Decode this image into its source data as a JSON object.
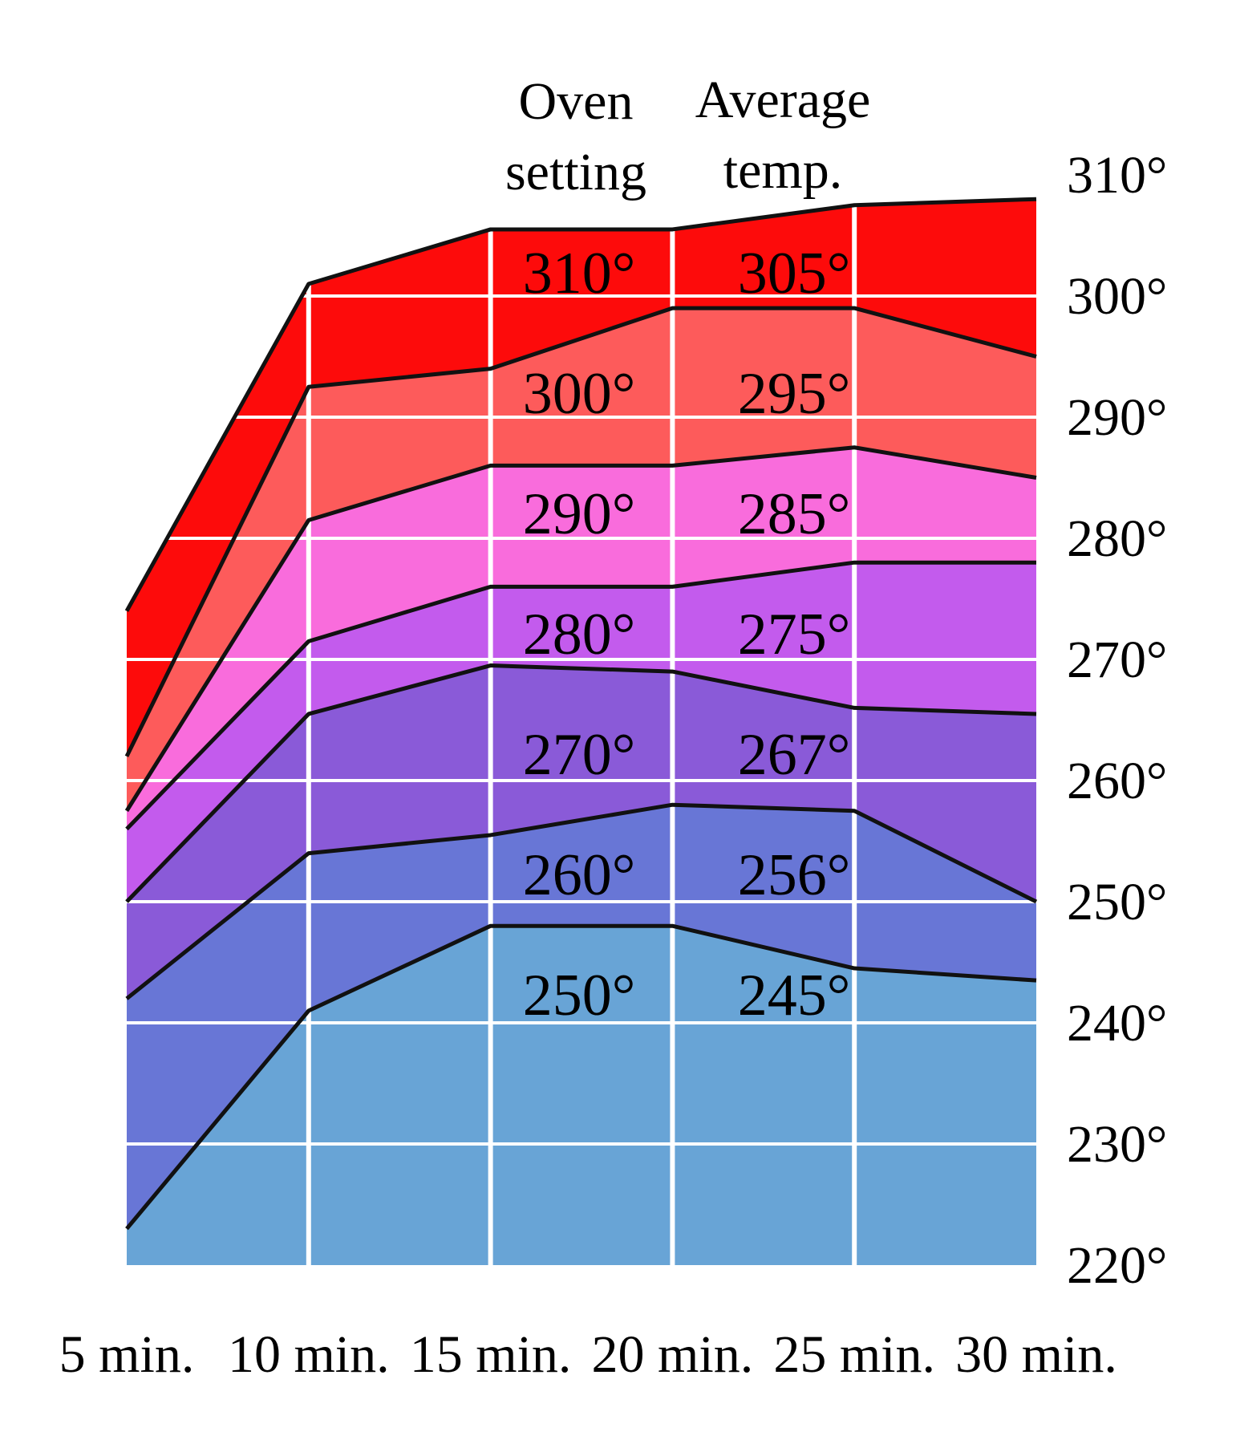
{
  "chart_data": {
    "type": "area",
    "x": [
      "5 min.",
      "10 min.",
      "15 min.",
      "20 min.",
      "25 min.",
      "30 min."
    ],
    "y_ticks": [
      "220°",
      "230°",
      "240°",
      "250°",
      "260°",
      "270°",
      "280°",
      "290°",
      "300°",
      "310°"
    ],
    "ylim": [
      220,
      310
    ],
    "grid": true,
    "column_headers": {
      "oven_setting": [
        "Oven",
        "setting"
      ],
      "average_temp": [
        "Average",
        "temp."
      ]
    },
    "series": [
      {
        "oven_setting": "250°",
        "average_temp": "245°",
        "color": "#68a4d6",
        "values": [
          223,
          241,
          248,
          248,
          244.5,
          243.5
        ]
      },
      {
        "oven_setting": "260°",
        "average_temp": "256°",
        "color": "#6876d6",
        "values": [
          242,
          254,
          255.5,
          258,
          257.5,
          250
        ]
      },
      {
        "oven_setting": "270°",
        "average_temp": "267°",
        "color": "#8a5ad8",
        "values": [
          250,
          265.5,
          269.5,
          269,
          266,
          265.5
        ]
      },
      {
        "oven_setting": "280°",
        "average_temp": "275°",
        "color": "#c35bed",
        "values": [
          256,
          271.5,
          276,
          276,
          278,
          278
        ]
      },
      {
        "oven_setting": "290°",
        "average_temp": "285°",
        "color": "#f96cdc",
        "values": [
          257.5,
          281.5,
          286,
          286,
          287.5,
          285
        ]
      },
      {
        "oven_setting": "300°",
        "average_temp": "295°",
        "color": "#fd5b5b",
        "values": [
          262,
          292.5,
          294,
          299,
          299,
          295
        ]
      },
      {
        "oven_setting": "310°",
        "average_temp": "305°",
        "color": "#fd0b0b",
        "values": [
          274,
          301,
          305.5,
          305.5,
          307.5,
          308
        ]
      }
    ]
  }
}
